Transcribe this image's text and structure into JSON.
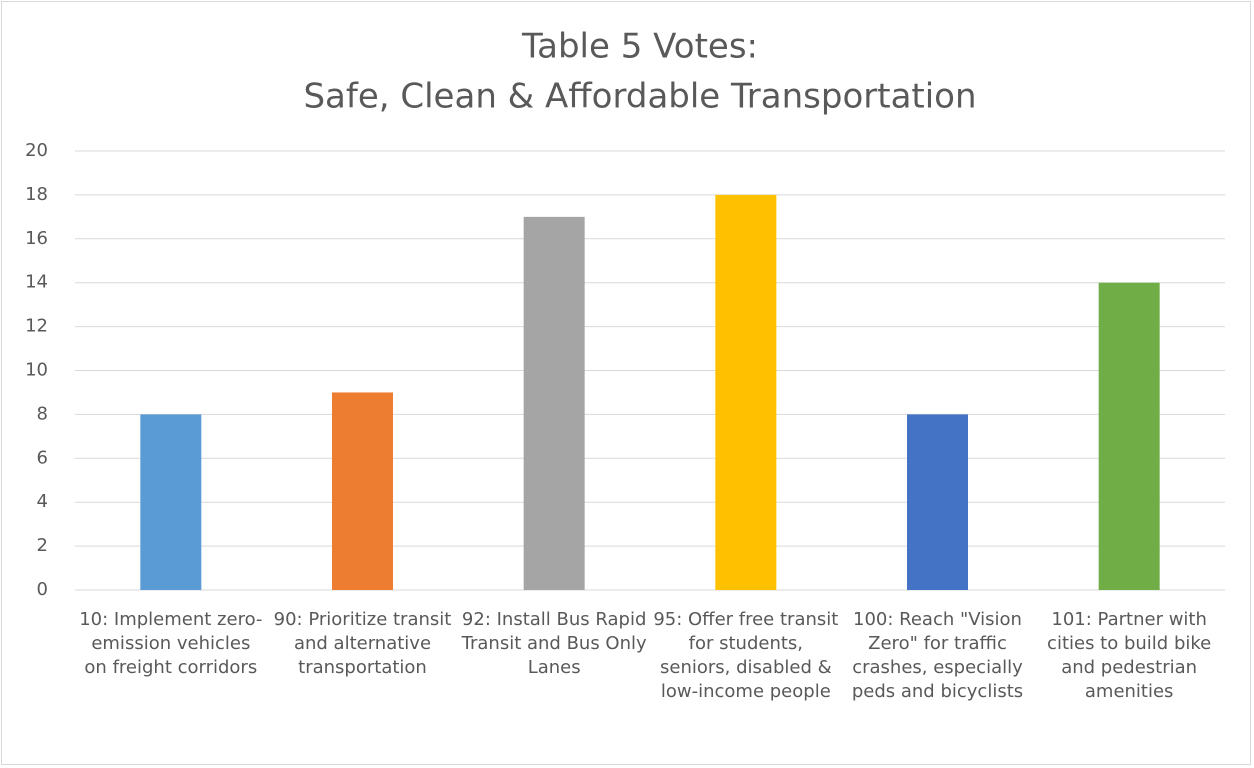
{
  "chart_data": {
    "type": "bar",
    "title": "Table 5 Votes:",
    "subtitle": "Safe, Clean & Affordable Transportation",
    "categories": [
      "10: Implement zero-emission vehicles on freight corridors",
      "90: Prioritize transit and alternative transportation",
      "92: Install Bus Rapid Transit and Bus Only Lanes",
      "95: Offer free transit for students, seniors, disabled & low-income people",
      "100: Reach \"Vision Zero\" for traffic crashes, especially peds and bicyclists",
      "101: Partner with cities to build bike and pedestrian amenities"
    ],
    "values": [
      8,
      9,
      17,
      18,
      8,
      14
    ],
    "colors": [
      "#5b9bd5",
      "#ed7d31",
      "#a5a5a5",
      "#ffc000",
      "#4472c4",
      "#70ad47"
    ],
    "ylim": [
      0,
      20
    ],
    "yticks": [
      0,
      2,
      4,
      6,
      8,
      10,
      12,
      14,
      16,
      18,
      20
    ],
    "grid": true
  }
}
